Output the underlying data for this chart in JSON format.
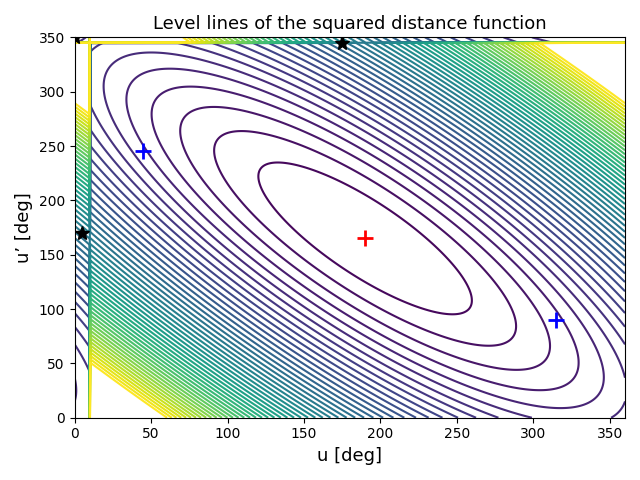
{
  "title": "Level lines of the squared distance function",
  "xlabel": "u [deg]",
  "ylabel": "u’ [deg]",
  "xlim": [
    0,
    360
  ],
  "ylim": [
    0,
    350
  ],
  "xticks": [
    0,
    50,
    100,
    150,
    200,
    250,
    300,
    350
  ],
  "yticks": [
    0,
    50,
    100,
    150,
    200,
    250,
    300,
    350
  ],
  "min_point": [
    190,
    165
  ],
  "blue_plus_points": [
    [
      45,
      245
    ],
    [
      315,
      90
    ]
  ],
  "star_points": [
    [
      0,
      350
    ],
    [
      175,
      345
    ],
    [
      5,
      170
    ]
  ],
  "colormap": "viridis",
  "n_levels": 50,
  "figsize": [
    6.4,
    4.8
  ],
  "dpi": 100,
  "A": 0.5,
  "B": 0.05
}
